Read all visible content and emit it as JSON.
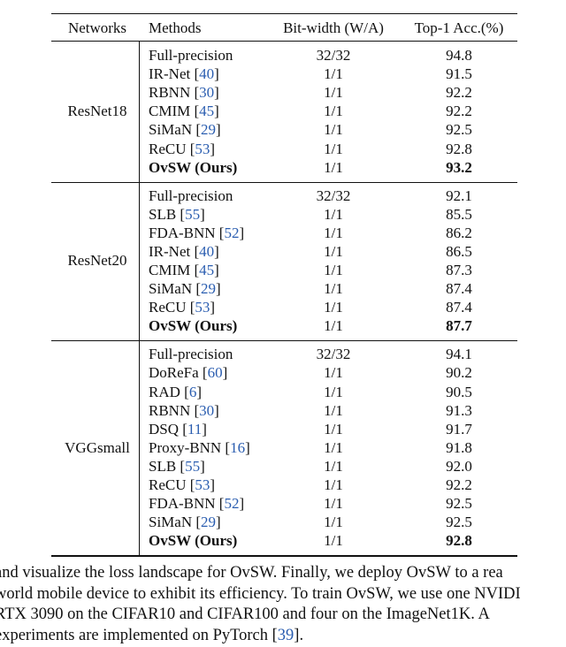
{
  "table": {
    "header": [
      "Networks",
      "Methods",
      "Bit-width (W/A)",
      "Top-1 Acc.(%)"
    ],
    "groups": [
      {
        "network": "ResNet18",
        "rows": [
          {
            "pre": "Full-precision",
            "bits": "32/32",
            "acc": "94.8"
          },
          {
            "pre": "IR-Net [",
            "ref": "40",
            "post": "]",
            "bits": "1/1",
            "acc": "91.5"
          },
          {
            "pre": "RBNN [",
            "ref": "30",
            "post": "]",
            "bits": "1/1",
            "acc": "92.2"
          },
          {
            "pre": "CMIM [",
            "ref": "45",
            "post": "]",
            "bits": "1/1",
            "acc": "92.2"
          },
          {
            "pre": "SiMaN [",
            "ref": "29",
            "post": "]",
            "bits": "1/1",
            "acc": "92.5"
          },
          {
            "pre": "ReCU [",
            "ref": "53",
            "post": "]",
            "bits": "1/1",
            "acc": "92.8"
          },
          {
            "pre": "OvSW (Ours)",
            "bits": "1/1",
            "acc": "93.2",
            "bold": true
          }
        ]
      },
      {
        "network": "ResNet20",
        "rows": [
          {
            "pre": "Full-precision",
            "bits": "32/32",
            "acc": "92.1"
          },
          {
            "pre": "SLB [",
            "ref": "55",
            "post": "]",
            "bits": "1/1",
            "acc": "85.5"
          },
          {
            "pre": "FDA-BNN [",
            "ref": "52",
            "post": "]",
            "bits": "1/1",
            "acc": "86.2"
          },
          {
            "pre": "IR-Net [",
            "ref": "40",
            "post": "]",
            "bits": "1/1",
            "acc": "86.5"
          },
          {
            "pre": "CMIM [",
            "ref": "45",
            "post": "]",
            "bits": "1/1",
            "acc": "87.3"
          },
          {
            "pre": "SiMaN [",
            "ref": "29",
            "post": "]",
            "bits": "1/1",
            "acc": "87.4"
          },
          {
            "pre": "ReCU [",
            "ref": "53",
            "post": "]",
            "bits": "1/1",
            "acc": "87.4"
          },
          {
            "pre": "OvSW (Ours)",
            "bits": "1/1",
            "acc": "87.7",
            "bold": true
          }
        ]
      },
      {
        "network": "VGGsmall",
        "rows": [
          {
            "pre": "Full-precision",
            "bits": "32/32",
            "acc": "94.1"
          },
          {
            "pre": "DoReFa [",
            "ref": "60",
            "post": "]",
            "bits": "1/1",
            "acc": "90.2"
          },
          {
            "pre": "RAD [",
            "ref": "6",
            "post": "]",
            "bits": "1/1",
            "acc": "90.5"
          },
          {
            "pre": "RBNN [",
            "ref": "30",
            "post": "]",
            "bits": "1/1",
            "acc": "91.3"
          },
          {
            "pre": "DSQ [",
            "ref": "11",
            "post": "]",
            "bits": "1/1",
            "acc": "91.7"
          },
          {
            "pre": "Proxy-BNN [",
            "ref": "16",
            "post": "]",
            "bits": "1/1",
            "acc": "91.8"
          },
          {
            "pre": "SLB [",
            "ref": "55",
            "post": "]",
            "bits": "1/1",
            "acc": "92.0"
          },
          {
            "pre": "ReCU [",
            "ref": "53",
            "post": "]",
            "bits": "1/1",
            "acc": "92.2"
          },
          {
            "pre": "FDA-BNN [",
            "ref": "52",
            "post": "]",
            "bits": "1/1",
            "acc": "92.5"
          },
          {
            "pre": "SiMaN [",
            "ref": "29",
            "post": "]",
            "bits": "1/1",
            "acc": "92.5"
          },
          {
            "pre": "OvSW (Ours)",
            "bits": "1/1",
            "acc": "92.8",
            "bold": true
          }
        ]
      }
    ]
  },
  "paragraph": {
    "lines": [
      {
        "pre": "and visualize the loss landscape for OvSW. Finally, we deploy OvSW to a rea"
      },
      {
        "pre": "world mobile device to exhibit its efficiency. To train OvSW, we use one NVIDI"
      },
      {
        "pre": "RTX 3090 on the CIFAR10 and CIFAR100 and four on the ImageNet1K. A"
      },
      {
        "pre": "experiments are implemented on PyTorch [",
        "ref": "39",
        "post": "]."
      }
    ]
  }
}
